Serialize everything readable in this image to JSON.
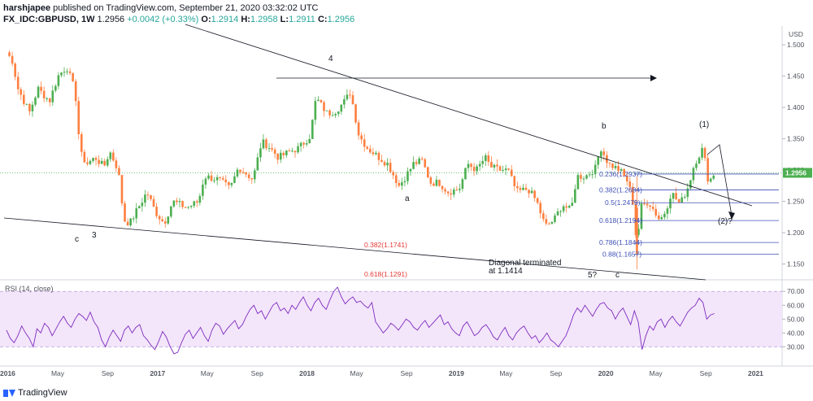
{
  "header": {
    "author": "harshjapee",
    "published_text": "published on TradingView.com, September 21, 2020 03:32:02 UTC",
    "symbol": "FX_IDC:GBPUSD, 1W",
    "last_price": "1.2956",
    "change": "+0.0042 (+0.33%)",
    "open_label": "O:",
    "open": "1.2914",
    "high_label": "H:",
    "high": "1.2958",
    "low_label": "L:",
    "low": "1.2911",
    "close_label": "C:",
    "close": "1.2956"
  },
  "footer": {
    "brand": "TradingView"
  },
  "colors": {
    "up": "#26a69a",
    "down": "#ef5350",
    "candle_up": "#4caf50",
    "candle_down": "#ff7f3f",
    "fib": "#3f51b5",
    "fib_red": "#e53935",
    "rsi_line": "#7e2cbf",
    "rsi_band": "#f3e5fa",
    "price_tag": "#4caf50"
  },
  "chart_data": [
    {
      "type": "candlestick",
      "x_tick_labels": [
        "2016",
        "May",
        "Sep",
        "2017",
        "May",
        "Sep",
        "2018",
        "May",
        "Sep",
        "2019",
        "May",
        "Sep",
        "2020",
        "May",
        "Sep",
        "2021"
      ],
      "y_axis_unit": "USD",
      "y_tick_labels": [
        "1.150",
        "1.200",
        "1.250",
        "1.300",
        "1.350",
        "1.400",
        "1.450",
        "1.500"
      ],
      "ylim": [
        1.13,
        1.53
      ],
      "current_price_label": "1.2956",
      "weekly_close_path": [
        [
          "2015-12-28",
          1.488
        ],
        [
          "2016-01-11",
          1.475
        ],
        [
          "2016-01-25",
          1.43
        ],
        [
          "2016-02-22",
          1.392
        ],
        [
          "2016-03-14",
          1.43
        ],
        [
          "2016-04-11",
          1.41
        ],
        [
          "2016-05-02",
          1.45
        ],
        [
          "2016-05-23",
          1.465
        ],
        [
          "2016-06-13",
          1.425
        ],
        [
          "2016-06-20",
          1.365
        ],
        [
          "2016-06-27",
          1.325
        ],
        [
          "2016-07-11",
          1.31
        ],
        [
          "2016-08-01",
          1.32
        ],
        [
          "2016-08-22",
          1.305
        ],
        [
          "2016-09-05",
          1.33
        ],
        [
          "2016-09-26",
          1.3
        ],
        [
          "2016-10-10",
          1.22
        ],
        [
          "2016-10-24",
          1.215
        ],
        [
          "2016-11-14",
          1.24
        ],
        [
          "2016-12-05",
          1.265
        ],
        [
          "2016-12-26",
          1.233
        ],
        [
          "2017-01-16",
          1.215
        ],
        [
          "2017-02-06",
          1.25
        ],
        [
          "2017-03-13",
          1.24
        ],
        [
          "2017-04-10",
          1.25
        ],
        [
          "2017-04-24",
          1.29
        ],
        [
          "2017-05-29",
          1.285
        ],
        [
          "2017-06-26",
          1.27
        ],
        [
          "2017-07-17",
          1.305
        ],
        [
          "2017-08-21",
          1.285
        ],
        [
          "2017-09-11",
          1.345
        ],
        [
          "2017-09-25",
          1.34
        ],
        [
          "2017-10-23",
          1.32
        ],
        [
          "2017-11-20",
          1.33
        ],
        [
          "2017-12-11",
          1.335
        ],
        [
          "2018-01-08",
          1.355
        ],
        [
          "2018-01-22",
          1.415
        ],
        [
          "2018-02-19",
          1.39
        ],
        [
          "2018-03-12",
          1.395
        ],
        [
          "2018-04-02",
          1.41
        ],
        [
          "2018-04-16",
          1.425
        ],
        [
          "2018-05-07",
          1.355
        ],
        [
          "2018-05-28",
          1.335
        ],
        [
          "2018-06-25",
          1.32
        ],
        [
          "2018-07-16",
          1.31
        ],
        [
          "2018-08-13",
          1.275
        ],
        [
          "2018-09-03",
          1.295
        ],
        [
          "2018-09-17",
          1.31
        ],
        [
          "2018-10-08",
          1.315
        ],
        [
          "2018-10-29",
          1.28
        ],
        [
          "2018-11-19",
          1.28
        ],
        [
          "2018-12-10",
          1.265
        ],
        [
          "2019-01-07",
          1.27
        ],
        [
          "2019-01-28",
          1.31
        ],
        [
          "2019-02-18",
          1.3
        ],
        [
          "2019-03-11",
          1.32
        ],
        [
          "2019-03-25",
          1.305
        ],
        [
          "2019-04-15",
          1.3
        ],
        [
          "2019-05-06",
          1.3
        ],
        [
          "2019-05-27",
          1.265
        ],
        [
          "2019-06-24",
          1.27
        ],
        [
          "2019-07-15",
          1.25
        ],
        [
          "2019-08-05",
          1.21
        ],
        [
          "2019-08-26",
          1.22
        ],
        [
          "2019-09-16",
          1.245
        ],
        [
          "2019-10-07",
          1.235
        ],
        [
          "2019-10-21",
          1.29
        ],
        [
          "2019-11-11",
          1.29
        ],
        [
          "2019-12-09",
          1.305
        ],
        [
          "2019-12-16",
          1.34
        ],
        [
          "2020-01-06",
          1.31
        ],
        [
          "2020-02-03",
          1.3
        ],
        [
          "2020-02-24",
          1.28
        ],
        [
          "2020-03-09",
          1.24
        ],
        [
          "2020-03-16",
          1.165
        ],
        [
          "2020-03-23",
          1.24
        ],
        [
          "2020-04-13",
          1.25
        ],
        [
          "2020-05-11",
          1.22
        ],
        [
          "2020-05-25",
          1.235
        ],
        [
          "2020-06-08",
          1.265
        ],
        [
          "2020-06-29",
          1.245
        ],
        [
          "2020-07-20",
          1.275
        ],
        [
          "2020-08-03",
          1.31
        ],
        [
          "2020-08-24",
          1.335
        ],
        [
          "2020-09-07",
          1.28
        ],
        [
          "2020-09-21",
          1.2956
        ]
      ]
    },
    {
      "type": "line",
      "title": "RSI (14, close)",
      "y_tick_labels": [
        "30.00",
        "40.00",
        "50.00",
        "60.00",
        "70.00"
      ],
      "ylim": [
        22,
        76
      ],
      "bands": [
        30,
        70
      ],
      "values": [
        42,
        36,
        33,
        38,
        45,
        40,
        36,
        30,
        43,
        40,
        47,
        44,
        38,
        43,
        48,
        52,
        47,
        44,
        50,
        54,
        52,
        49,
        55,
        48,
        44,
        35,
        30,
        37,
        42,
        38,
        34,
        42,
        45,
        40,
        44,
        46,
        38,
        35,
        31,
        28,
        34,
        41,
        37,
        30,
        25,
        26,
        33,
        39,
        42,
        36,
        40,
        44,
        38,
        34,
        42,
        47,
        45,
        39,
        43,
        46,
        49,
        43,
        46,
        52,
        57,
        60,
        54,
        56,
        50,
        55,
        60,
        62,
        56,
        58,
        54,
        60,
        57,
        62,
        66,
        60,
        56,
        62,
        65,
        60,
        57,
        64,
        70,
        73,
        66,
        61,
        64,
        66,
        62,
        63,
        60,
        58,
        62,
        48,
        44,
        40,
        43,
        47,
        45,
        42,
        46,
        50,
        48,
        44,
        42,
        46,
        49,
        44,
        47,
        50,
        53,
        46,
        48,
        43,
        40,
        38,
        45,
        48,
        43,
        38,
        40,
        44,
        46,
        42,
        37,
        35,
        40,
        44,
        38,
        35,
        40,
        43,
        45,
        40,
        36,
        38,
        33,
        36,
        40,
        35,
        33,
        30,
        34,
        38,
        45,
        53,
        58,
        55,
        60,
        56,
        52,
        57,
        61,
        62,
        58,
        56,
        50,
        55,
        58,
        52,
        46,
        56,
        48,
        28,
        38,
        45,
        42,
        48,
        50,
        44,
        49,
        52,
        48,
        45,
        50,
        55,
        58,
        60,
        65,
        62,
        50,
        53,
        54
      ]
    }
  ],
  "annotations": {
    "wave_labels": [
      "4",
      "(1)",
      "b",
      "a",
      "c",
      "3",
      "5?",
      "c",
      "(2)?"
    ],
    "diagonal_note": [
      "Diagonal terminated",
      "at 1.1414"
    ],
    "red_fibs": [
      "0.382(1.1741)",
      "0.618(1.1291)"
    ],
    "blue_fibs": [
      "0.236(1.2937)",
      "0.382(1.2684)",
      "0.5(1.2479)",
      "0.618(1.2194)",
      "0.786(1.1844)",
      "0.88(1.1657)"
    ]
  }
}
